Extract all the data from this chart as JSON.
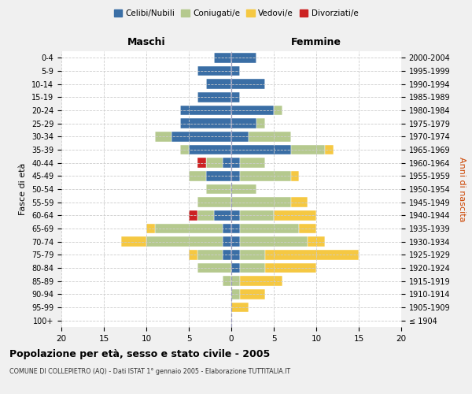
{
  "age_groups": [
    "100+",
    "95-99",
    "90-94",
    "85-89",
    "80-84",
    "75-79",
    "70-74",
    "65-69",
    "60-64",
    "55-59",
    "50-54",
    "45-49",
    "40-44",
    "35-39",
    "30-34",
    "25-29",
    "20-24",
    "15-19",
    "10-14",
    "5-9",
    "0-4"
  ],
  "birth_years": [
    "≤ 1904",
    "1905-1909",
    "1910-1914",
    "1915-1919",
    "1920-1924",
    "1925-1929",
    "1930-1934",
    "1935-1939",
    "1940-1944",
    "1945-1949",
    "1950-1954",
    "1955-1959",
    "1960-1964",
    "1965-1969",
    "1970-1974",
    "1975-1979",
    "1980-1984",
    "1985-1989",
    "1990-1994",
    "1995-1999",
    "2000-2004"
  ],
  "male": {
    "celibi": [
      0,
      0,
      0,
      0,
      0,
      1,
      1,
      1,
      2,
      0,
      0,
      3,
      1,
      5,
      7,
      6,
      6,
      4,
      3,
      4,
      2
    ],
    "coniugati": [
      0,
      0,
      0,
      1,
      4,
      3,
      9,
      8,
      2,
      4,
      3,
      2,
      2,
      1,
      2,
      0,
      0,
      0,
      0,
      0,
      0
    ],
    "vedovi": [
      0,
      0,
      0,
      0,
      0,
      1,
      3,
      1,
      0,
      0,
      0,
      0,
      0,
      0,
      0,
      0,
      0,
      0,
      0,
      0,
      0
    ],
    "divorziati": [
      0,
      0,
      0,
      0,
      0,
      0,
      0,
      0,
      1,
      0,
      0,
      0,
      1,
      0,
      0,
      0,
      0,
      0,
      0,
      0,
      0
    ]
  },
  "female": {
    "nubili": [
      0,
      0,
      0,
      0,
      1,
      1,
      1,
      1,
      1,
      0,
      0,
      1,
      1,
      7,
      2,
      3,
      5,
      1,
      4,
      1,
      3
    ],
    "coniugate": [
      0,
      0,
      1,
      1,
      3,
      3,
      8,
      7,
      4,
      7,
      3,
      6,
      3,
      4,
      5,
      1,
      1,
      0,
      0,
      0,
      0
    ],
    "vedove": [
      0,
      2,
      3,
      5,
      6,
      11,
      2,
      2,
      5,
      2,
      0,
      1,
      0,
      1,
      0,
      0,
      0,
      0,
      0,
      0,
      0
    ],
    "divorziate": [
      0,
      0,
      0,
      0,
      0,
      0,
      0,
      0,
      0,
      0,
      0,
      0,
      0,
      0,
      0,
      0,
      0,
      0,
      0,
      0,
      0
    ]
  },
  "colors": {
    "celibi": "#3a6ea5",
    "coniugati": "#b5c98e",
    "vedovi": "#f5c842",
    "divorziati": "#cc2222"
  },
  "title": "Popolazione per età, sesso e stato civile - 2005",
  "subtitle": "COMUNE DI COLLEPIETRO (AQ) - Dati ISTAT 1° gennaio 2005 - Elaborazione TUTTITALIA.IT",
  "xlabel_left": "Maschi",
  "xlabel_right": "Femmine",
  "ylabel_left": "Fasce di età",
  "ylabel_right": "Anni di nascita",
  "xlim": 20,
  "bg_color": "#f0f0f0",
  "plot_bg_color": "#ffffff"
}
